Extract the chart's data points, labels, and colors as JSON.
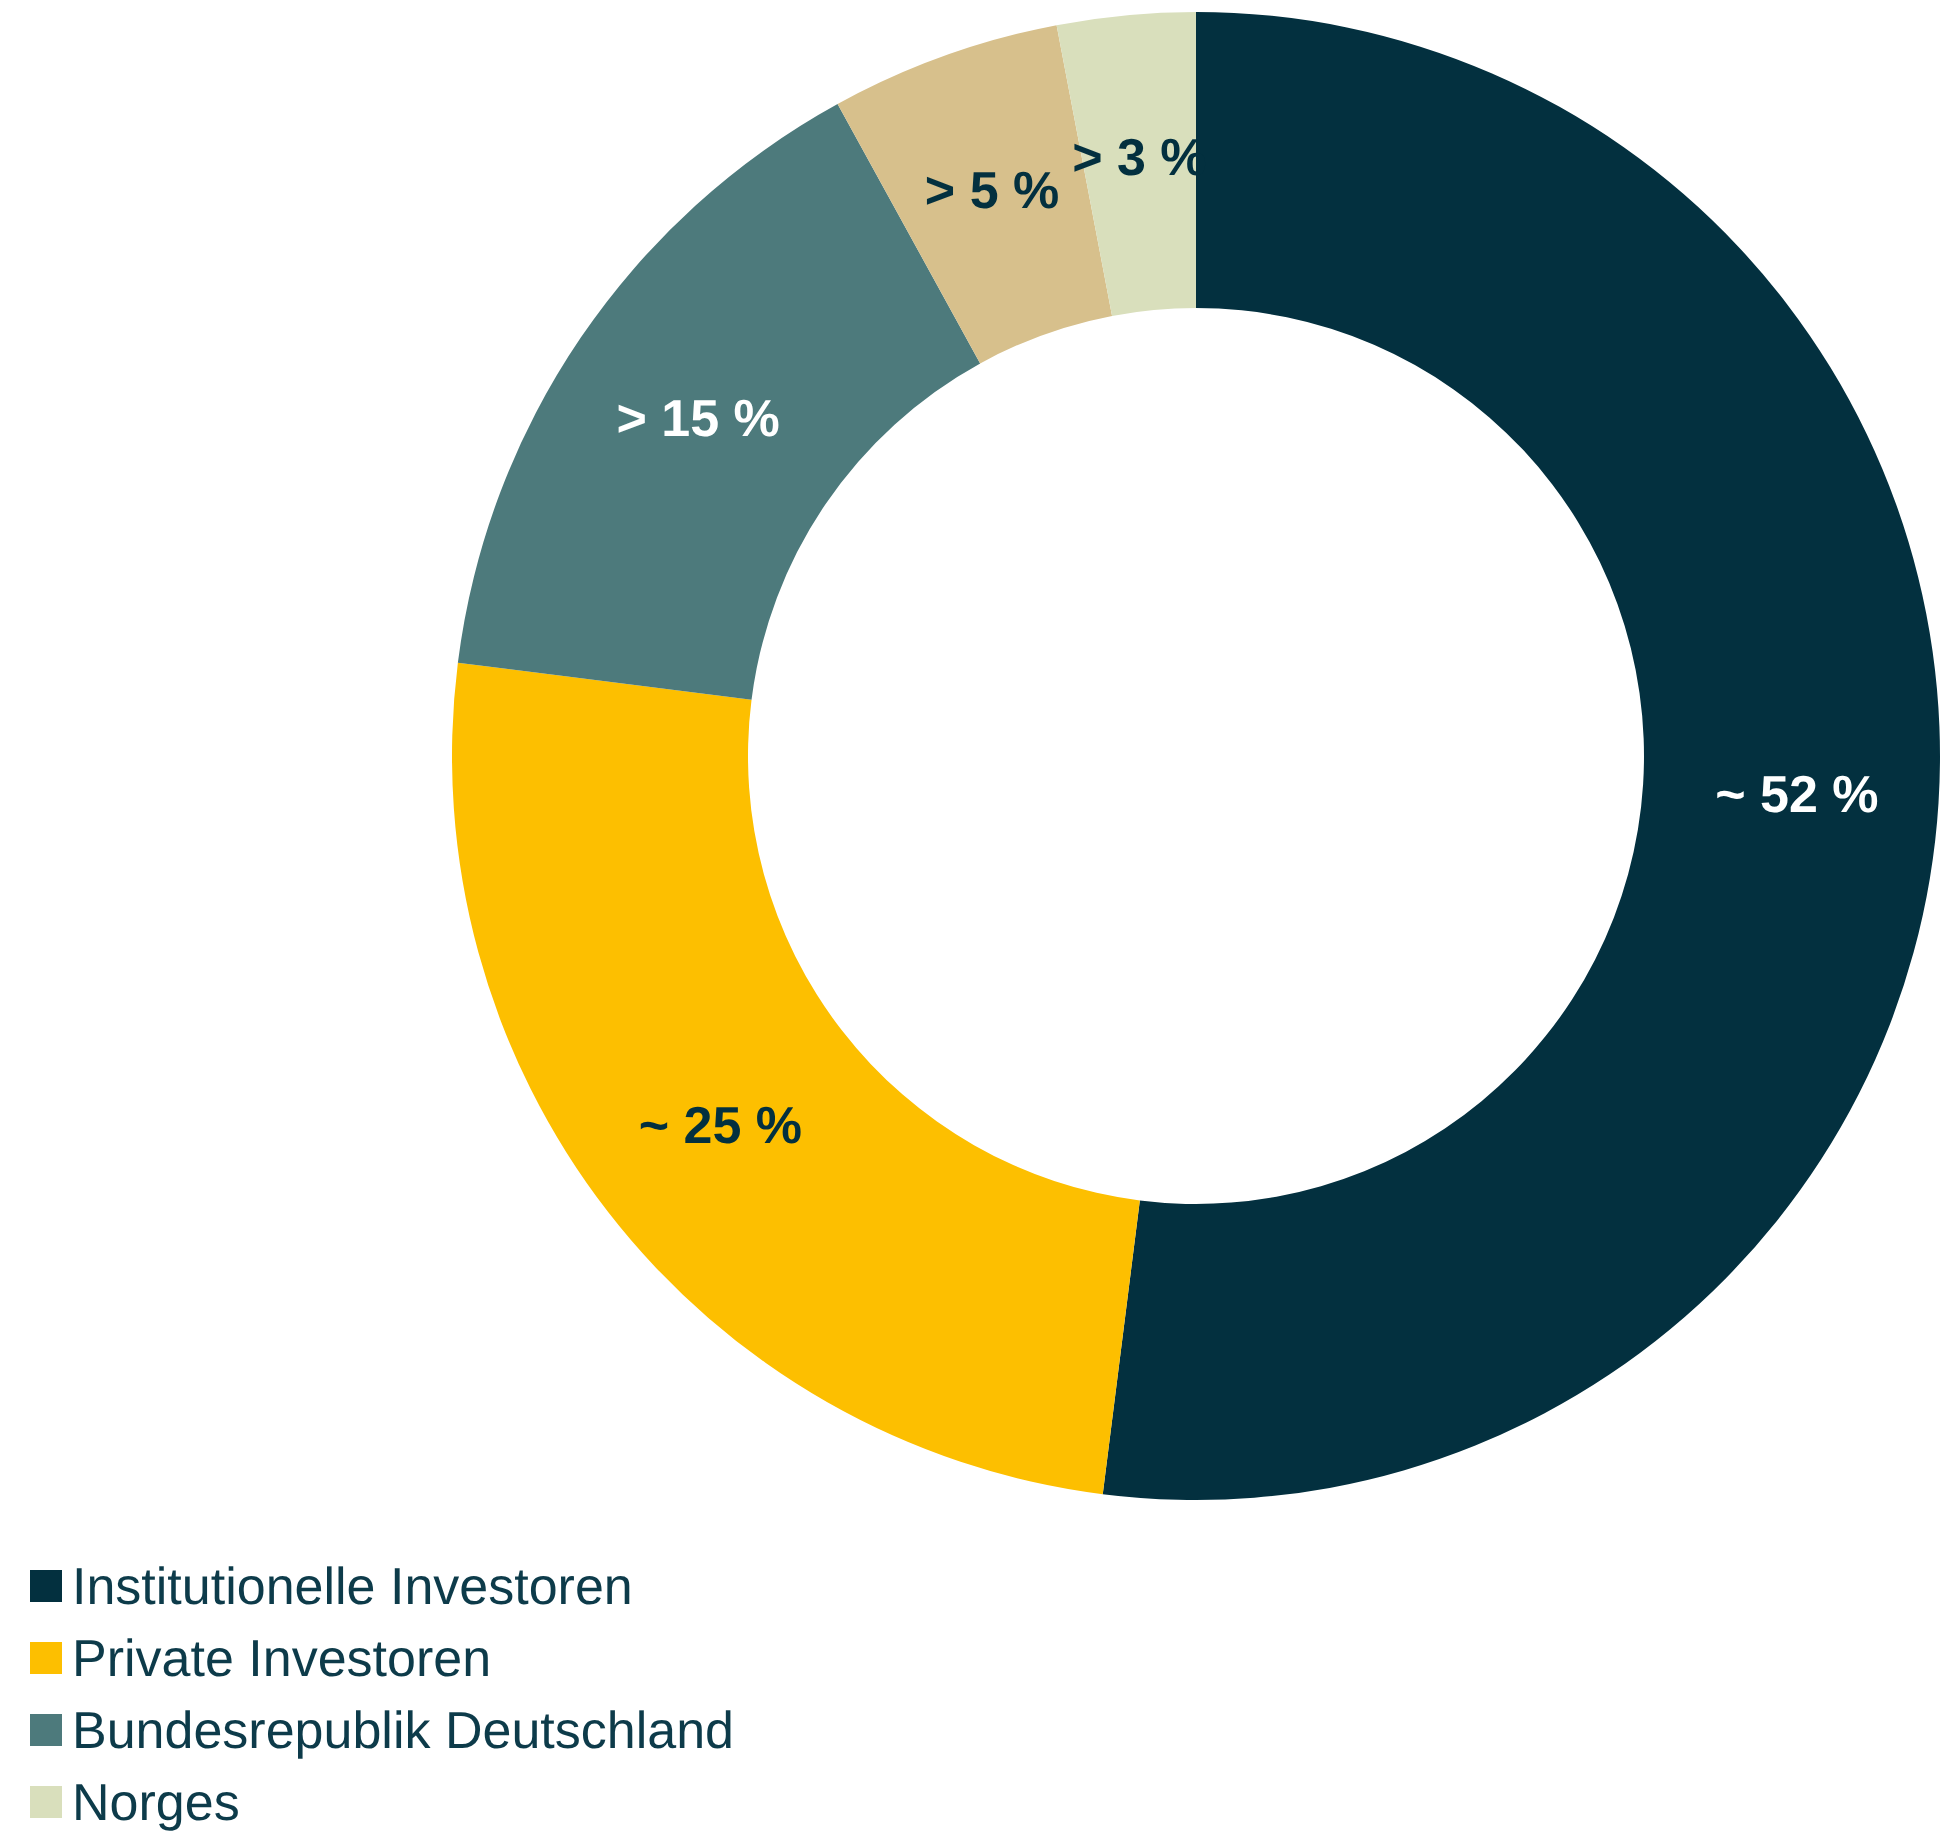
{
  "chart_data": {
    "type": "donut",
    "categories": [
      "Institutionelle Investoren",
      "Private Investoren",
      "Bundesrepublik Deutschland",
      null,
      "Norges"
    ],
    "values": [
      52,
      25,
      15,
      5,
      3
    ],
    "value_labels": [
      "~ 52 %",
      "~ 25 %",
      "> 15 %",
      "> 5 %",
      "> 3 %"
    ],
    "colors": [
      "#03303f",
      "#fdbf00",
      "#4d7a7c",
      "#d7c08c",
      "#d9dfbc"
    ],
    "legend": "bottom left"
  }
}
